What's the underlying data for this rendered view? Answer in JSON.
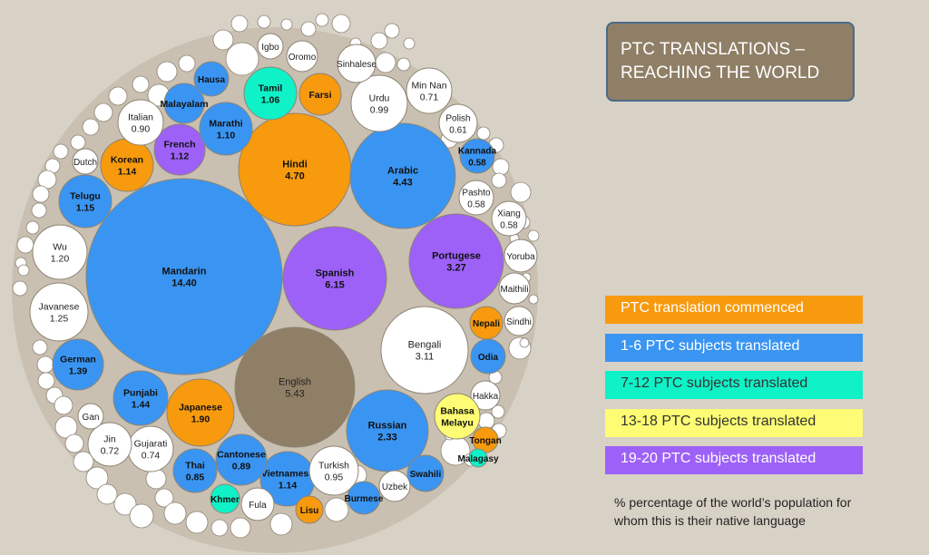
{
  "title": "PTC TRANSLATIONS – REACHING THE WORLD",
  "legend": [
    {
      "label": "PTC translation commenced",
      "color": "#f79a0e"
    },
    {
      "label": "1-6 PTC subjects translated",
      "color": "#3a95f2"
    },
    {
      "label": "7-12 PTC subjects translated",
      "color": "#0ff2c8"
    },
    {
      "label": "13-18 PTC subjects translated",
      "color": "#fdfc74"
    },
    {
      "label": "19-20 PTC subjects translated",
      "color": "#9d61f7"
    }
  ],
  "footnote": "% percentage of the world’s population for whom this is their native language",
  "status_colors": {
    "none": "#ffffff",
    "commenced": "#f79a0e",
    "1-6": "#3a95f2",
    "7-12": "#0ff2c8",
    "13-18": "#fdfc74",
    "19-20": "#9d61f7",
    "english": "#8f7f66"
  },
  "languages": [
    {
      "name": "Mandarin",
      "value": "14.40",
      "status": "1-6"
    },
    {
      "name": "Spanish",
      "value": "6.15",
      "status": "19-20"
    },
    {
      "name": "English",
      "value": "5.43",
      "status": "english"
    },
    {
      "name": "Hindi",
      "value": "4.70",
      "status": "commenced"
    },
    {
      "name": "Arabic",
      "value": "4.43",
      "status": "1-6"
    },
    {
      "name": "Portugese",
      "value": "3.27",
      "status": "19-20"
    },
    {
      "name": "Bengali",
      "value": "3.11",
      "status": "none"
    },
    {
      "name": "Russian",
      "value": "2.33",
      "status": "1-6"
    },
    {
      "name": "Japanese",
      "value": "1.90",
      "status": "commenced"
    },
    {
      "name": "Punjabi",
      "value": "1.44",
      "status": "1-6"
    },
    {
      "name": "German",
      "value": "1.39",
      "status": "1-6"
    },
    {
      "name": "Javanese",
      "value": "1.25",
      "status": "none"
    },
    {
      "name": "Wu",
      "value": "1.20",
      "status": "none"
    },
    {
      "name": "Telugu",
      "value": "1.15",
      "status": "1-6"
    },
    {
      "name": "Vietnamese",
      "value": "1.14",
      "status": "1-6"
    },
    {
      "name": "Korean",
      "value": "1.14",
      "status": "commenced"
    },
    {
      "name": "French",
      "value": "1.12",
      "status": "19-20"
    },
    {
      "name": "Marathi",
      "value": "1.10",
      "status": "1-6"
    },
    {
      "name": "Tamil",
      "value": "1.06",
      "status": "7-12"
    },
    {
      "name": "Urdu",
      "value": "0.99",
      "status": "none"
    },
    {
      "name": "Turkish",
      "value": "0.95",
      "status": "none"
    },
    {
      "name": "Italian",
      "value": "0.90",
      "status": "none"
    },
    {
      "name": "Cantonese",
      "value": "0.89",
      "status": "1-6"
    },
    {
      "name": "Thai",
      "value": "0.85",
      "status": "1-6"
    },
    {
      "name": "Gujarati",
      "value": "0.74",
      "status": "none"
    },
    {
      "name": "Jin",
      "value": "0.72",
      "status": "none"
    },
    {
      "name": "Min Nan",
      "value": "0.71",
      "status": "none"
    },
    {
      "name": "Polish",
      "value": "0.61",
      "status": "none"
    },
    {
      "name": "Kannada",
      "value": "0.58",
      "status": "1-6"
    },
    {
      "name": "Pashto",
      "value": "0.58",
      "status": "none"
    },
    {
      "name": "Xiang",
      "value": "0.58",
      "status": "none"
    },
    {
      "name": "Farsi",
      "value": "",
      "status": "commenced"
    },
    {
      "name": "Malayalam",
      "value": "",
      "status": "1-6"
    },
    {
      "name": "Hausa",
      "value": "",
      "status": "1-6"
    },
    {
      "name": "Igbo",
      "value": "",
      "status": "none"
    },
    {
      "name": "Oromo",
      "value": "",
      "status": "none"
    },
    {
      "name": "Sinhalese",
      "value": "",
      "status": "none"
    },
    {
      "name": "Dutch",
      "value": "",
      "status": "none"
    },
    {
      "name": "Yoruba",
      "value": "",
      "status": "none"
    },
    {
      "name": "Maithili",
      "value": "",
      "status": "none"
    },
    {
      "name": "Sindhi",
      "value": "",
      "status": "none"
    },
    {
      "name": "Nepali",
      "value": "",
      "status": "commenced"
    },
    {
      "name": "Odia",
      "value": "",
      "status": "1-6"
    },
    {
      "name": "Hakka",
      "value": "",
      "status": "none"
    },
    {
      "name": "Bahasa Melayu",
      "value": "",
      "status": "13-18"
    },
    {
      "name": "Tongan",
      "value": "",
      "status": "commenced"
    },
    {
      "name": "Malagasy",
      "value": "",
      "status": "7-12"
    },
    {
      "name": "Swahili",
      "value": "",
      "status": "1-6"
    },
    {
      "name": "Uzbek",
      "value": "",
      "status": "none"
    },
    {
      "name": "Burmese",
      "value": "",
      "status": "1-6"
    },
    {
      "name": "Lisu",
      "value": "",
      "status": "commenced"
    },
    {
      "name": "Fula",
      "value": "",
      "status": "none"
    },
    {
      "name": "Khmer",
      "value": "",
      "status": "7-12"
    },
    {
      "name": "Gan",
      "value": "",
      "status": "none"
    }
  ]
}
